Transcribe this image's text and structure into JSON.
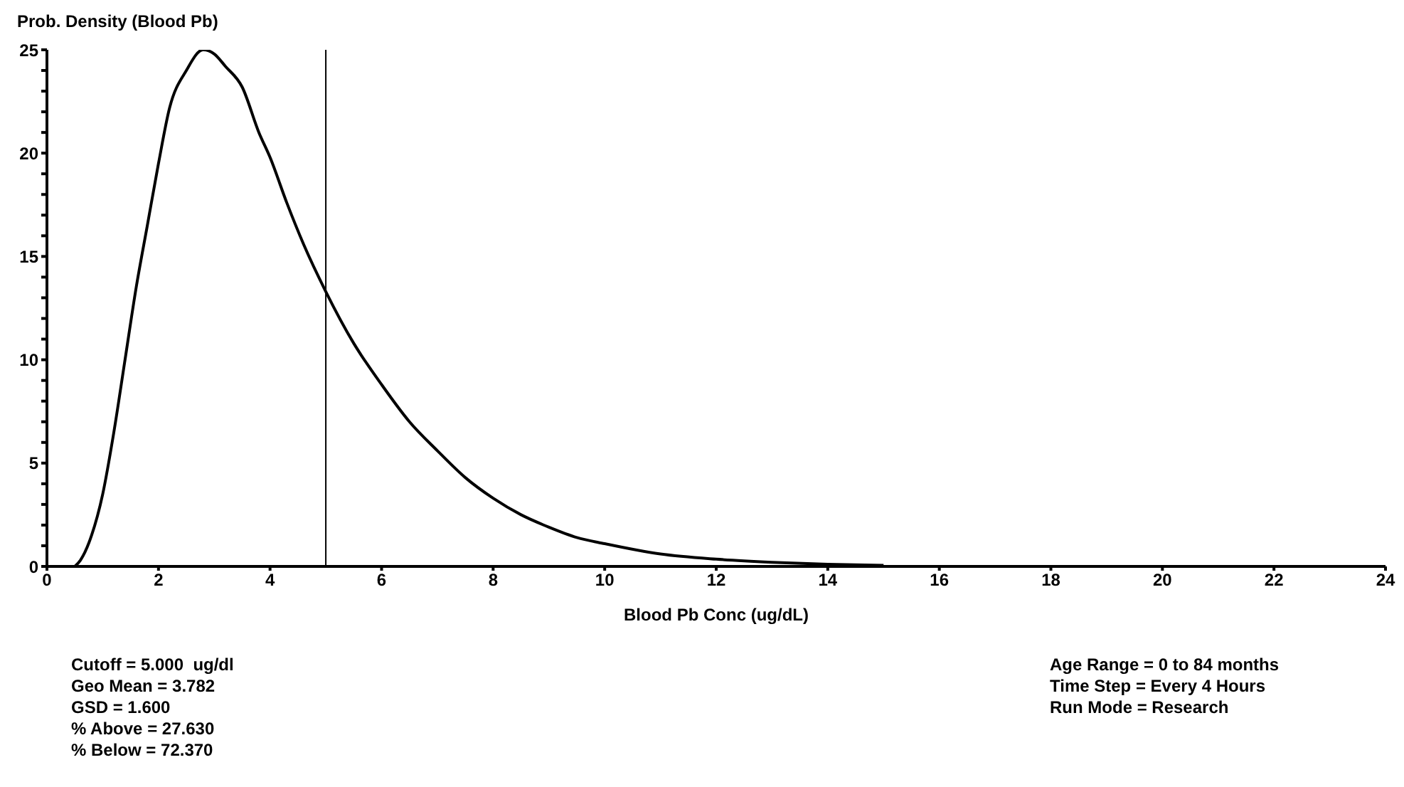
{
  "chart_data": {
    "type": "line",
    "ylabel": "Prob. Density (Blood Pb)",
    "xlabel": "Blood Pb Conc (ug/dL)",
    "x": [
      0.5,
      0.6,
      0.8,
      1.0,
      1.2,
      1.4,
      1.6,
      1.8,
      2.0,
      2.2,
      2.5,
      2.8,
      3.0,
      3.2,
      3.5,
      3.8,
      4.0,
      4.3,
      4.6,
      5.0,
      5.5,
      6.0,
      6.5,
      7.0,
      7.5,
      8.0,
      8.5,
      9.0,
      9.5,
      10,
      11,
      12,
      13,
      14,
      15
    ],
    "series": [
      {
        "color": "#000000",
        "values": [
          0,
          0.3,
          1.5,
          3.5,
          6.5,
          10,
          13.5,
          16.5,
          19.5,
          22.2,
          24,
          25,
          24.8,
          24.2,
          23.2,
          21,
          19.8,
          17.6,
          15.6,
          13.3,
          10.8,
          8.8,
          7,
          5.6,
          4.3,
          3.3,
          2.5,
          1.9,
          1.4,
          1.1,
          0.6,
          0.35,
          0.2,
          0.1,
          0.05
        ]
      }
    ],
    "xlim": [
      0,
      24
    ],
    "xticks": [
      0,
      2,
      4,
      6,
      8,
      10,
      12,
      14,
      16,
      18,
      20,
      22,
      24
    ],
    "ylim": [
      0,
      25
    ],
    "yticks": [
      0,
      {
        "value": 1,
        "label": null
      },
      {
        "value": 2,
        "label": null
      },
      {
        "value": 3,
        "label": null
      },
      {
        "value": 4,
        "label": null
      },
      5,
      {
        "value": 6,
        "label": null
      },
      {
        "value": 7,
        "label": null
      },
      {
        "value": 8,
        "label": null
      },
      {
        "value": 9,
        "label": null
      },
      10,
      {
        "value": 11,
        "label": null
      },
      {
        "value": 12,
        "label": null
      },
      {
        "value": 13,
        "label": null
      },
      {
        "value": 14,
        "label": null
      },
      15,
      {
        "value": 16,
        "label": null
      },
      {
        "value": 17,
        "label": null
      },
      {
        "value": 18,
        "label": null
      },
      {
        "value": 19,
        "label": null
      },
      20,
      {
        "value": 21,
        "label": null
      },
      {
        "value": 22,
        "label": null
      },
      {
        "value": 23,
        "label": null
      },
      {
        "value": 24,
        "label": null
      },
      25
    ],
    "ref_lines": [
      {
        "axis": "x",
        "value": 5,
        "color": "#000000"
      }
    ],
    "grid": false,
    "legend": false,
    "marker": "none",
    "line_style": "solid",
    "annotations": [
      "Cutoff = 5.000  ug/dl",
      "Geo Mean = 3.782",
      "GSD = 1.600",
      "% Above = 27.630",
      "% Below = 72.370",
      "Age Range = 0 to 84 months",
      "Time Step = Every 4 Hours",
      "Run Mode = Research"
    ]
  }
}
